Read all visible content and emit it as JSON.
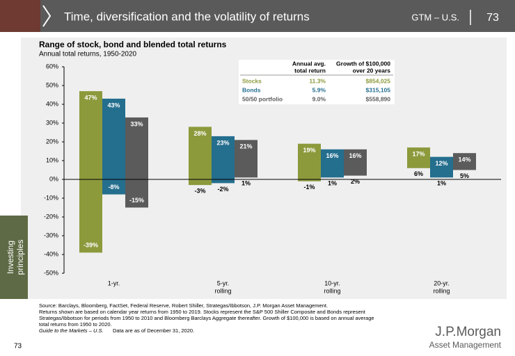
{
  "header": {
    "title": "Time, diversification and the volatility of returns",
    "section": "GTM – U.S.",
    "page": "73"
  },
  "side_tab": [
    "Investing",
    "principles"
  ],
  "chart_data": {
    "type": "range_bar",
    "title": "Range of stock, bond and blended total returns",
    "subtitle": "Annual total returns, 1950-2020",
    "categories": [
      [
        "1-yr."
      ],
      [
        "5-yr.",
        "rolling"
      ],
      [
        "10-yr.",
        "rolling"
      ],
      [
        "20-yr.",
        "rolling"
      ]
    ],
    "series": [
      {
        "name": "Stocks",
        "color": "#8c9a3c",
        "high": [
          47,
          28,
          19,
          17
        ],
        "high_labels": [
          "47%",
          "28%",
          "19%",
          "17%"
        ],
        "low": [
          -39,
          -3,
          -1,
          6
        ],
        "low_labels": [
          "-39%",
          "-3%",
          "-1%",
          "6%"
        ]
      },
      {
        "name": "Bonds",
        "color": "#246e8e",
        "high": [
          43,
          23,
          16,
          12
        ],
        "high_labels": [
          "43%",
          "23%",
          "16%",
          "12%"
        ],
        "low": [
          -8,
          -2,
          1,
          1
        ],
        "low_labels": [
          "-8%",
          "-2%",
          "1%",
          "1%"
        ]
      },
      {
        "name": "50/50 portfolio",
        "color": "#5b5b5b",
        "high": [
          33,
          21,
          16,
          14
        ],
        "high_labels": [
          "33%",
          "21%",
          "16%",
          "14%"
        ],
        "low": [
          -15,
          1,
          2,
          5
        ],
        "low_labels": [
          "-15%",
          "1%",
          "2%",
          "5%"
        ]
      }
    ],
    "ylim": [
      -50,
      60
    ],
    "yticks": [
      {
        "value": 60,
        "label": "60%"
      },
      {
        "value": 50,
        "label": "50%"
      },
      {
        "value": 40,
        "label": "40%"
      },
      {
        "value": 30,
        "label": "30%"
      },
      {
        "value": 20,
        "label": "20%"
      },
      {
        "value": 10,
        "label": "10%"
      },
      {
        "value": 0,
        "label": "0%"
      },
      {
        "value": -10,
        "label": "-10%"
      },
      {
        "value": -20,
        "label": "-20%"
      },
      {
        "value": -30,
        "label": "-30%"
      },
      {
        "value": -40,
        "label": "-40%"
      },
      {
        "value": -50,
        "label": "-50%"
      }
    ],
    "table": {
      "headers": [
        [
          "Annual avg.",
          "total return"
        ],
        [
          "Growth of $100,000",
          "over 20 years"
        ]
      ],
      "rows": [
        [
          "Stocks",
          "11.3%",
          "$854,025"
        ],
        [
          "Bonds",
          "5.9%",
          "$315,105"
        ],
        [
          "50/50 portfolio",
          "9.0%",
          "$558,890"
        ]
      ]
    }
  },
  "footer": {
    "source": [
      "Source: Barclays, Bloomberg, FactSet, Federal Reserve, Robert Shiller, Strategas/Ibbotson, J.P. Morgan Asset Management.",
      "Returns shown are based on calendar year returns from 1950 to 2019. Stocks represent the S&P 500 Shiller Composite and Bonds represent",
      "Strategas/Ibbotson for periods from 1950 to 2010 and Bloomberg Barclays Aggregate thereafter. Growth of $100,000 is based on annual average",
      "total returns from 1950 to 2020."
    ],
    "guide": "Guide to the Markets – U.S.",
    "asof": "Data are as of December 31, 2020.",
    "page_number": "73",
    "logo": "J.P.Morgan",
    "logo_sub": "Asset Management"
  }
}
